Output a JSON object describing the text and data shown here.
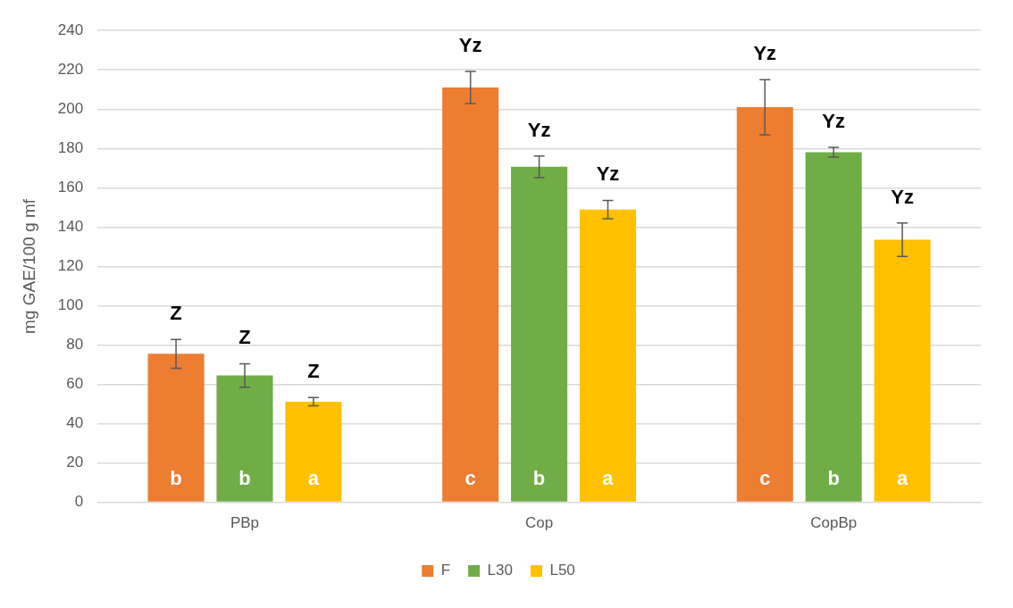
{
  "chart_data": {
    "type": "bar",
    "ylabel": "mg GAE/100 g mf",
    "categories": [
      "PBp",
      "Cop",
      "CopBp"
    ],
    "series": [
      {
        "name": "F",
        "color": "#ed7d31",
        "values": [
          75.5,
          211,
          201
        ],
        "errors": [
          7.3,
          8.2,
          14
        ]
      },
      {
        "name": "L30",
        "color": "#70ad47",
        "values": [
          64.5,
          170.7,
          178.1
        ],
        "errors": [
          6,
          5.5,
          2.5
        ]
      },
      {
        "name": "L50",
        "color": "#ffc000",
        "values": [
          51.2,
          148.9,
          133.6
        ],
        "errors": [
          2.1,
          4.7,
          8.5
        ]
      }
    ],
    "ylim": [
      0,
      240
    ],
    "yticks": [
      0,
      20,
      40,
      60,
      80,
      100,
      120,
      140,
      160,
      180,
      200,
      220,
      240
    ],
    "grid": "y",
    "legend": "bottom",
    "annotations": [
      "Z",
      "Z",
      "Z",
      "b",
      "b",
      "a",
      "Yz",
      "Yz",
      "Yz",
      "c",
      "b",
      "a",
      "Yz",
      "Yz",
      "Yz",
      "c",
      "b",
      "a"
    ]
  }
}
